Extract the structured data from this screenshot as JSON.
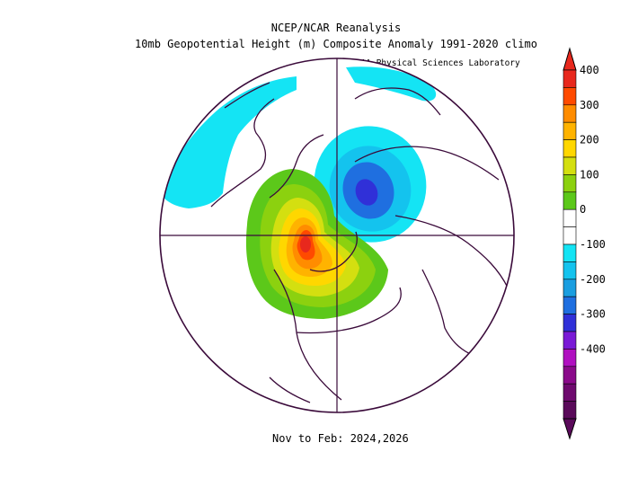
{
  "header": {
    "title": "NCEP/NCAR Reanalysis",
    "subtitle": "10mb Geopotential Height (m) Composite Anomaly 1991-2020 climo"
  },
  "credit": "NOAA Physical Sciences Laboratory",
  "period": "Nov to Feb: 2024,2026",
  "colorbar": {
    "levels": [
      {
        "value": "400",
        "color": "#e8281d"
      },
      {
        "value": "300",
        "color": "#ff8c00"
      },
      {
        "value": "200",
        "color": "#ffd700"
      },
      {
        "value": "100",
        "color": "#8cd10f"
      },
      {
        "value": "0",
        "color": "#ffffff"
      },
      {
        "value": "-100",
        "color": "#14c3ee"
      },
      {
        "value": "-200",
        "color": "#3030d8"
      },
      {
        "value": "-300",
        "color": "#b010c0"
      },
      {
        "value": "-400",
        "color": "#5a0a5a"
      }
    ],
    "bins": [
      "#e8281d",
      "#ff4a00",
      "#ff8c00",
      "#ffb300",
      "#ffd700",
      "#d4df10",
      "#8cd10f",
      "#5cc81a",
      "#ffffff",
      "#ffffff",
      "#14e4f4",
      "#14c3ee",
      "#1a9ee0",
      "#1f6fe0",
      "#3030d8",
      "#7a1ad6",
      "#b010c0",
      "#8a0a8a",
      "#6e0a6e",
      "#5a0a5a"
    ]
  },
  "map": {
    "projection": "polar stereographic",
    "hemisphere": "northern",
    "features": [
      "positive anomaly over Alaska/NW Canada",
      "negative anomaly over Siberia/Arctic"
    ]
  }
}
